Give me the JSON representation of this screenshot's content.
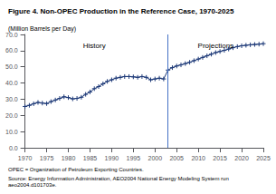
{
  "chart_data": {
    "type": "line",
    "title": "Figure 4. Non-OPEC Production in the Reference Case, 1970-2025",
    "subtitle": "(Million Barrels per Day)",
    "footnotes": [
      "OPEC = Organization of Petroleum Exporting Countries.",
      "Source: Energy Information Administration, AEO2004 National Energy Modeling System run aeo2004.d101703e."
    ],
    "x": [
      1970,
      1971,
      1972,
      1973,
      1974,
      1975,
      1976,
      1977,
      1978,
      1979,
      1980,
      1981,
      1982,
      1983,
      1984,
      1985,
      1986,
      1987,
      1988,
      1989,
      1990,
      1991,
      1992,
      1993,
      1994,
      1995,
      1996,
      1997,
      1998,
      1999,
      2000,
      2001,
      2002,
      2003,
      2004,
      2005,
      2006,
      2007,
      2008,
      2009,
      2010,
      2011,
      2012,
      2013,
      2014,
      2015,
      2016,
      2017,
      2018,
      2019,
      2020,
      2021,
      2022,
      2023,
      2024,
      2025
    ],
    "values": [
      25.5,
      26.2,
      27.2,
      28.0,
      27.6,
      27.3,
      28.5,
      29.5,
      30.5,
      31.5,
      31.0,
      30.2,
      30.5,
      31.2,
      33.0,
      34.5,
      36.5,
      37.8,
      39.5,
      41.0,
      42.0,
      43.0,
      43.5,
      44.0,
      44.0,
      43.8,
      43.5,
      44.0,
      43.5,
      42.0,
      42.5,
      43.0,
      42.5,
      48.0,
      49.5,
      50.5,
      51.2,
      52.0,
      52.8,
      53.8,
      54.8,
      55.8,
      56.8,
      57.8,
      58.8,
      59.5,
      60.2,
      61.0,
      61.8,
      62.5,
      63.0,
      63.3,
      63.6,
      63.8,
      64.0,
      64.3
    ],
    "color": "#1e3a78",
    "marker": "plus",
    "xlim": [
      1970,
      2025
    ],
    "xticks": [
      1970,
      1975,
      1980,
      1985,
      1990,
      1995,
      2000,
      2005,
      2010,
      2015,
      2020,
      2025
    ],
    "ylim": [
      0.0,
      70.0
    ],
    "yticks": [
      {
        "value": 0,
        "label": "0.0"
      },
      {
        "value": 10,
        "label": "10.0"
      },
      {
        "value": 20,
        "label": "20.0"
      },
      {
        "value": 30,
        "label": "30.0"
      },
      {
        "value": 40,
        "label": "40.0"
      },
      {
        "value": 50,
        "label": "50.0"
      },
      {
        "value": 60,
        "label": "60.0"
      },
      {
        "value": 70,
        "label": "70.0"
      }
    ],
    "reference_lines": [
      {
        "x": 2003
      }
    ],
    "annotations": [
      {
        "text": "History",
        "x": 1986,
        "y": 65.5
      },
      {
        "text": "Projections",
        "x": 2014,
        "y": 65.5
      }
    ],
    "grid": false
  }
}
